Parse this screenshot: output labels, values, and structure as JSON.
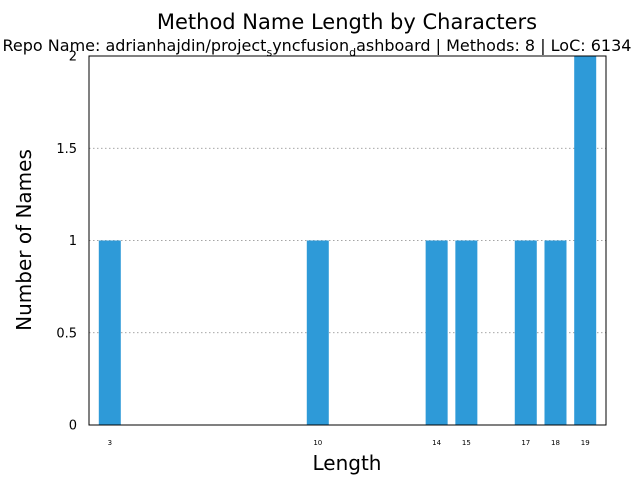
{
  "chart_data": {
    "type": "bar",
    "title": "Method Name Length by Characters",
    "subtitle": {
      "prefix": "Repo Name: adrianhajdin/project",
      "sub1": "s",
      "mid": "yncfusion",
      "sub2": "d",
      "suffix": "ashboard | Methods: 8 | LoC: 6134"
    },
    "xlabel": "Length",
    "ylabel": "Number of Names",
    "x": [
      3,
      10,
      14,
      15,
      17,
      18,
      19
    ],
    "values": [
      1,
      1,
      1,
      1,
      1,
      1,
      2
    ],
    "xlim": [
      2.3,
      19.7
    ],
    "ylim": [
      0,
      2
    ],
    "yticks": [
      0,
      0.5,
      1,
      1.5,
      2
    ],
    "ytick_labels": [
      "0",
      "0.5",
      "1",
      "1.5",
      "2"
    ],
    "grid": "horizontal-dotted",
    "bar_color": "#2e9ad8"
  }
}
